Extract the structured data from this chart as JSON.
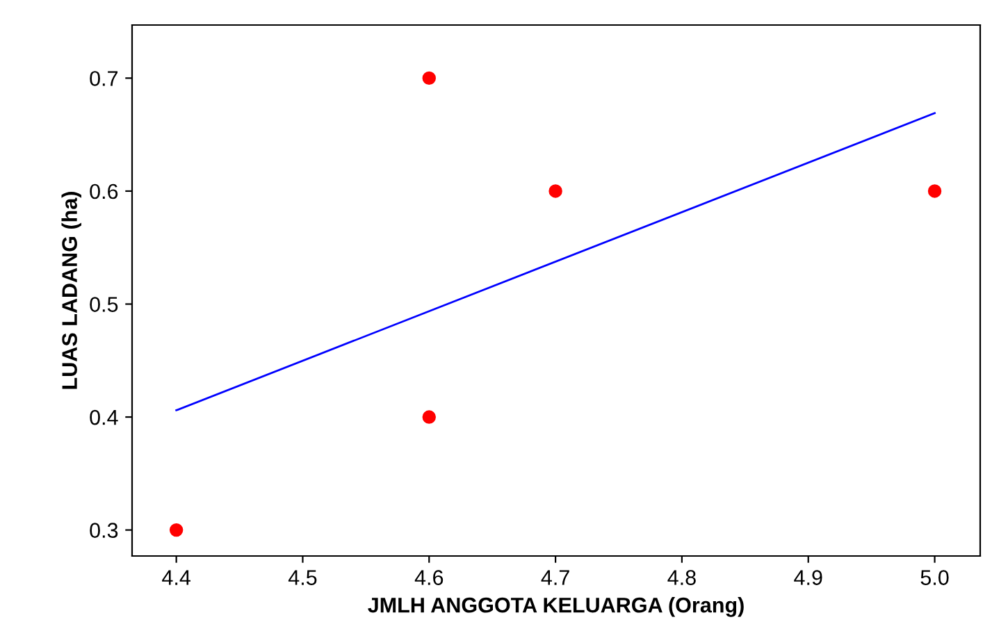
{
  "chart_data": {
    "type": "scatter",
    "xlabel": "JMLH ANGGOTA KELUARGA (Orang)",
    "ylabel": "LUAS LADANG (ha)",
    "series": [
      {
        "color": "#ff0000",
        "x": [
          4.4,
          4.6,
          4.6,
          4.7,
          5.0
        ],
        "values": [
          0.3,
          0.7,
          0.4,
          0.6,
          0.6
        ],
        "marker": "circle"
      },
      {
        "type": "line",
        "color": "#0000ff",
        "x": [
          4.4,
          5.0
        ],
        "values": [
          0.406,
          0.669
        ],
        "marker": "none",
        "line_style": "solid"
      }
    ],
    "xlim": [
      4.365,
      5.036
    ],
    "ylim": [
      0.277,
      0.747
    ],
    "xticks": [
      4.4,
      4.5,
      4.6,
      4.7,
      4.8,
      4.9,
      {
        "value": 5.0,
        "label": "5.0"
      }
    ],
    "yticks": [
      0.3,
      0.4,
      0.5,
      0.6,
      0.7
    ],
    "grid": false,
    "legend": false
  }
}
